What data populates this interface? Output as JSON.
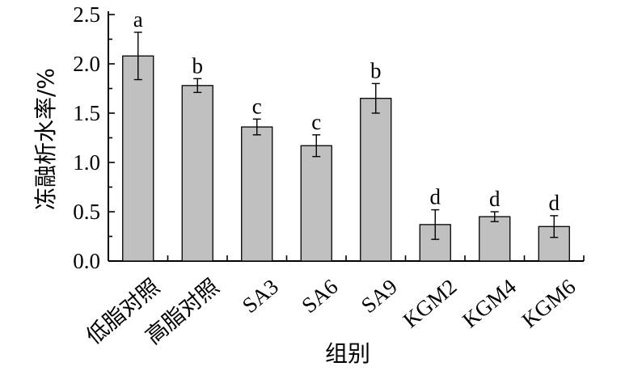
{
  "chart_data": {
    "type": "bar",
    "title": "",
    "xlabel": "组别",
    "ylabel": "冻融析水率/%",
    "ylim": [
      0.0,
      2.5
    ],
    "yticks": [
      "0.0",
      "0.5",
      "1.0",
      "1.5",
      "2.0",
      "2.5"
    ],
    "categories": [
      "低脂对照",
      "高脂对照",
      "SA3",
      "SA6",
      "SA9",
      "KGM2",
      "KGM4",
      "KGM6"
    ],
    "values": [
      2.08,
      1.78,
      1.36,
      1.17,
      1.65,
      0.37,
      0.45,
      0.35
    ],
    "errors": [
      0.24,
      0.07,
      0.08,
      0.11,
      0.15,
      0.15,
      0.05,
      0.11
    ],
    "significance": [
      "a",
      "b",
      "c",
      "c",
      "b",
      "d",
      "d",
      "d"
    ],
    "grid": false,
    "colors": {
      "bar": "#c0c0c0",
      "edge": "#000000"
    }
  }
}
